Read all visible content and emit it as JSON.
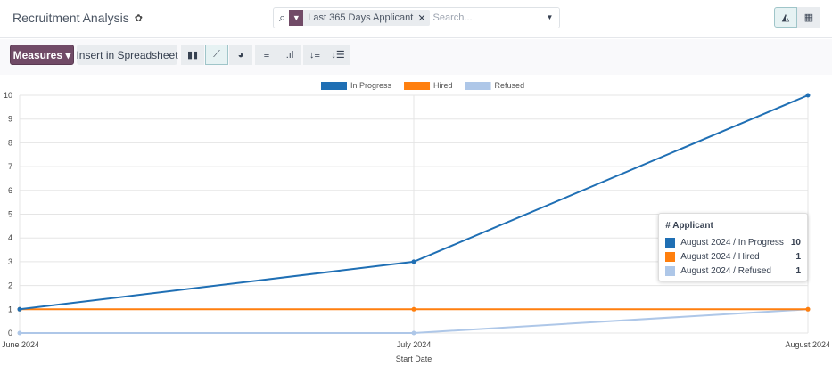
{
  "header": {
    "title": "Recruitment Analysis",
    "search": {
      "facet": "Last 365 Days Applicant",
      "placeholder": "Search..."
    }
  },
  "toolbar": {
    "measures": "Measures",
    "insert": "Insert in Spreadsheet"
  },
  "chart_data": {
    "type": "line",
    "categories": [
      "June 2024",
      "July 2024",
      "August 2024"
    ],
    "xlabel": "Start Date",
    "ylim": [
      0,
      10
    ],
    "yticks": [
      "0",
      "1",
      "2",
      "3",
      "4",
      "5",
      "6",
      "7",
      "8",
      "9",
      "10"
    ],
    "legend": "top",
    "series": [
      {
        "name": "In Progress",
        "color": "#1f6fb4",
        "values": [
          1,
          3,
          10
        ]
      },
      {
        "name": "Hired",
        "color": "#ff7f0e",
        "values": [
          1,
          1,
          1
        ]
      },
      {
        "name": "Refused",
        "color": "#aec7e8",
        "values": [
          0,
          0,
          1
        ]
      }
    ]
  },
  "tooltip": {
    "title": "# Applicant",
    "rows": [
      {
        "label": "August 2024 / In Progress",
        "value": "10",
        "color": "#1f6fb4"
      },
      {
        "label": "August 2024 / Hired",
        "value": "1",
        "color": "#ff7f0e"
      },
      {
        "label": "August 2024 / Refused",
        "value": "1",
        "color": "#aec7e8"
      }
    ]
  }
}
